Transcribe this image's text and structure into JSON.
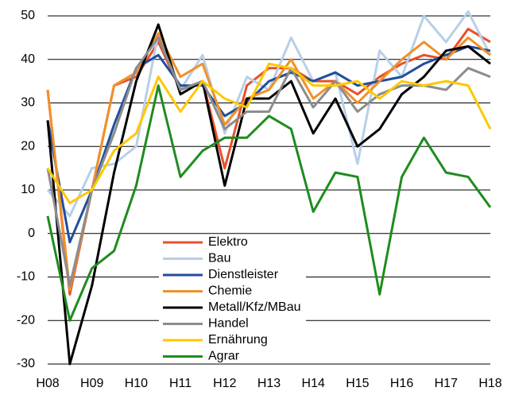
{
  "chart_data": {
    "type": "line",
    "categories": [
      "H08",
      null,
      "H09",
      null,
      "H10",
      null,
      "H11",
      null,
      "H12",
      null,
      "H13",
      null,
      "H14",
      null,
      "H15",
      null,
      "H16",
      null,
      "H17",
      null,
      "H18"
    ],
    "series": [
      {
        "name": "Elektro",
        "color": "#e8502a",
        "values": [
          33,
          -14,
          10,
          34,
          36,
          44,
          33,
          35,
          15,
          34,
          38,
          38,
          35,
          35,
          32,
          36,
          39,
          41,
          40,
          47,
          44
        ]
      },
      {
        "name": "Bau",
        "color": "#b8cfe8",
        "values": [
          10,
          4,
          15,
          16,
          20,
          46,
          33,
          41,
          23,
          36,
          33,
          45,
          35,
          37,
          16,
          42,
          36,
          50,
          44,
          51,
          41
        ]
      },
      {
        "name": "Dienstleister",
        "color": "#1f4e9c",
        "values": [
          26,
          -2,
          10,
          25,
          38,
          41,
          34,
          34,
          27,
          30,
          35,
          37,
          35,
          37,
          34,
          35,
          36,
          39,
          41,
          43,
          42
        ]
      },
      {
        "name": "Chemie",
        "color": "#f0902a",
        "values": [
          33,
          -13,
          10,
          34,
          37,
          46,
          36,
          39,
          25,
          31,
          33,
          40,
          31,
          35,
          30,
          35,
          40,
          44,
          40,
          45,
          41
        ]
      },
      {
        "name": "Metall/Kfz/MBau",
        "color": "#000000",
        "values": [
          26,
          -30,
          -12,
          14,
          35,
          48,
          32,
          35,
          11,
          31,
          31,
          35,
          23,
          31,
          20,
          24,
          32,
          36,
          42,
          43,
          39
        ]
      },
      {
        "name": "Handel",
        "color": "#8c8c8c",
        "values": [
          15,
          -12,
          10,
          23,
          38,
          45,
          33,
          35,
          24,
          28,
          28,
          38,
          29,
          35,
          28,
          32,
          34,
          34,
          33,
          38,
          36
        ]
      },
      {
        "name": "Ernährung",
        "color": "#ffc800",
        "values": [
          15,
          7,
          10,
          19,
          23,
          36,
          28,
          35,
          31,
          29,
          39,
          38,
          34,
          34,
          35,
          31,
          35,
          34,
          35,
          34,
          24
        ]
      },
      {
        "name": "Agrar",
        "color": "#1e8c1e",
        "values": [
          4,
          -20,
          -8,
          -4,
          11,
          34,
          13,
          19,
          22,
          22,
          27,
          24,
          5,
          14,
          13,
          -14,
          13,
          22,
          14,
          13,
          6
        ]
      }
    ],
    "ylim": [
      -30,
      50
    ],
    "yticks": [
      -30,
      -20,
      -10,
      0,
      10,
      20,
      30,
      40,
      50
    ],
    "grid": true
  }
}
